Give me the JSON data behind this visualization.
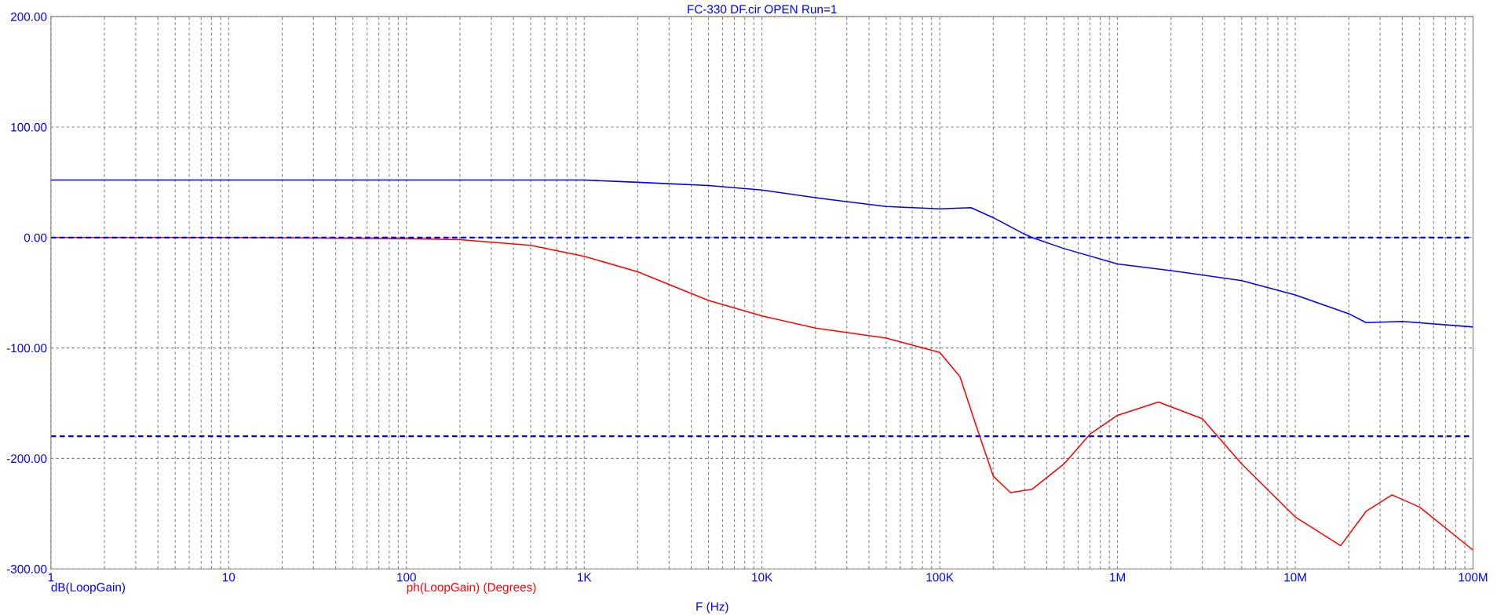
{
  "chart_data": {
    "type": "line",
    "title": "FC-330 DF.cir OPEN Run=1",
    "xlabel": "F (Hz)",
    "log": "x",
    "grid": true,
    "legend": "bottom",
    "marker": "none",
    "line_style": "solid",
    "xlim": [
      1,
      100000000
    ],
    "ylim": [
      -300,
      200
    ],
    "xticks": [
      {
        "value": 1,
        "label": "1"
      },
      {
        "value": 10,
        "label": "10"
      },
      {
        "value": 100,
        "label": "100"
      },
      {
        "value": 1000,
        "label": "1K"
      },
      {
        "value": 10000,
        "label": "10K"
      },
      {
        "value": 100000,
        "label": "100K"
      },
      {
        "value": 1000000,
        "label": "1M"
      },
      {
        "value": 10000000,
        "label": "10M"
      },
      {
        "value": 100000000,
        "label": "100M"
      }
    ],
    "yticks": [
      {
        "value": 200,
        "label": "200.00"
      },
      {
        "value": 100,
        "label": "100.00"
      },
      {
        "value": 0,
        "label": "0.00"
      },
      {
        "value": -100,
        "label": "-100.00"
      },
      {
        "value": -200,
        "label": "-200.00"
      },
      {
        "value": -300,
        "label": "-300.00"
      }
    ],
    "series": [
      {
        "name": "dB(LoopGain)",
        "color": "#0000ff",
        "x": [
          1,
          10,
          100,
          1000,
          2000,
          5000,
          10000,
          20000,
          50000,
          100000,
          150000,
          200000,
          300000,
          330000,
          500000,
          1000000,
          2000000,
          5000000,
          10000000,
          20000000,
          25000000,
          40000000,
          100000000
        ],
        "values": [
          52,
          52,
          52,
          52,
          50,
          47,
          43,
          36,
          28,
          26,
          27,
          18,
          3,
          0,
          -10,
          -24,
          -30,
          -39,
          -52,
          -69,
          -77,
          -76,
          -81
        ]
      },
      {
        "name": "ph(LoopGain) (Degrees)",
        "color": "#ff0000",
        "x": [
          1,
          10,
          100,
          200,
          500,
          1000,
          2000,
          5000,
          10000,
          20000,
          50000,
          100000,
          130000,
          160000,
          200000,
          250000,
          330000,
          500000,
          700000,
          1000000,
          1700000,
          3000000,
          5000000,
          10000000,
          18000000,
          25000000,
          35000000,
          50000000,
          100000000
        ],
        "values": [
          0,
          0,
          -1,
          -2,
          -7,
          -17,
          -31,
          -57,
          -71,
          -82,
          -91,
          -104,
          -126,
          -170,
          -216,
          -231,
          -228,
          -205,
          -178,
          -161,
          -149,
          -164,
          -205,
          -253,
          -279,
          -248,
          -233,
          -244,
          -283
        ]
      }
    ],
    "ref_lines": [
      {
        "axis": "y",
        "value": 0,
        "color": "#0000ff",
        "line_style": "dashed"
      },
      {
        "axis": "y",
        "value": -180,
        "color": "#0000ff",
        "line_style": "dashed"
      }
    ]
  }
}
